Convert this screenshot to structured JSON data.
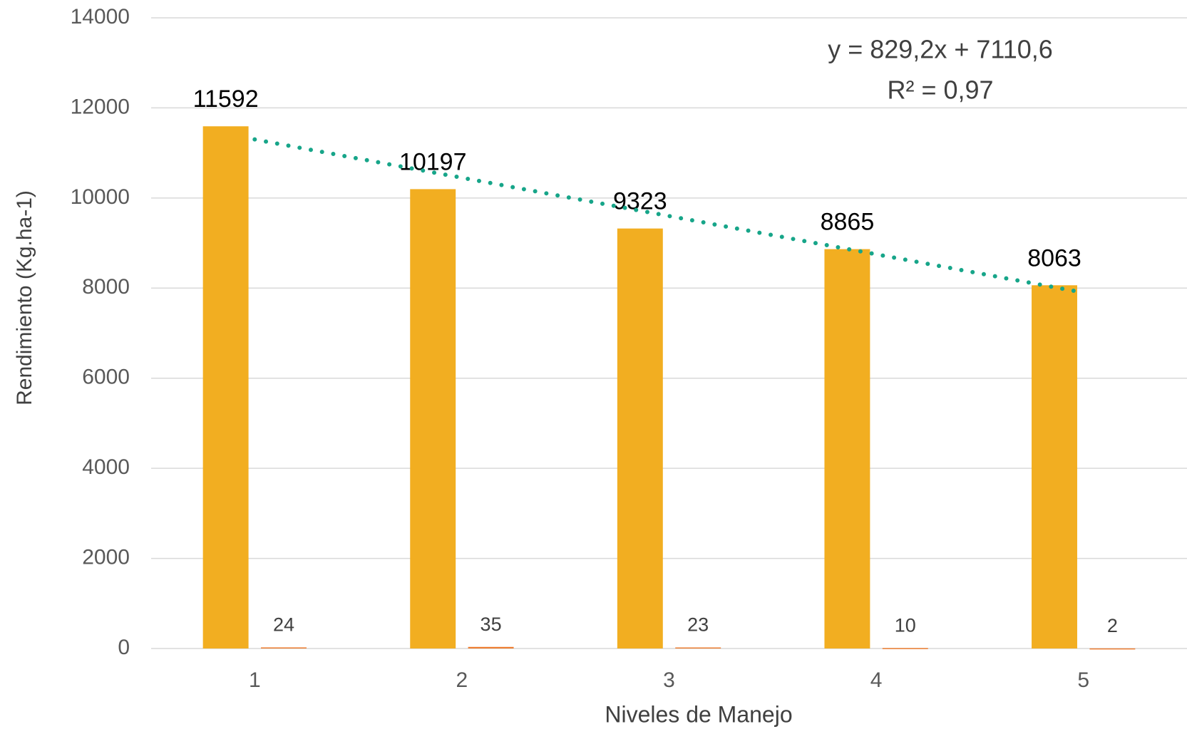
{
  "chart_data": {
    "type": "bar",
    "xlabel": "Niveles  de Manejo",
    "ylabel": "Rendimiento (Kg.ha-1)",
    "annotations": [
      "y = 829,2x + 7110,6",
      "R² = 0,97"
    ],
    "categories": [
      "1",
      "2",
      "3",
      "4",
      "5"
    ],
    "series": [
      {
        "color": "#f2ae21",
        "values": [
          11592,
          10197,
          9323,
          8865,
          8063
        ]
      },
      {
        "color": "#ed7d31",
        "values": [
          24,
          35,
          23,
          10,
          2
        ]
      }
    ],
    "trendline": {
      "color": "#17a589",
      "values": [
        11300,
        10450,
        9600,
        8750,
        7900
      ]
    },
    "ylim": [
      0,
      14000
    ],
    "yticks": [
      0,
      2000,
      4000,
      6000,
      8000,
      10000,
      12000,
      14000
    ],
    "grid": true
  }
}
